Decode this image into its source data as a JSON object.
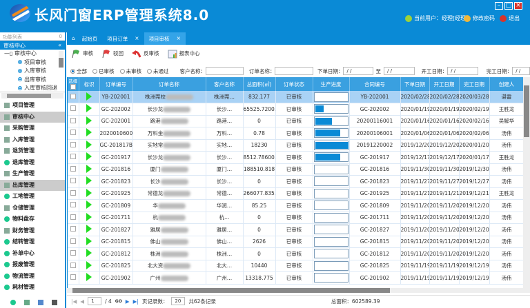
{
  "app": {
    "title": "长风门窗ERP管理系统8.0",
    "user": "当前用户：经理[经理]",
    "change_password": "修改密码",
    "logout": "退出"
  },
  "left": {
    "panel_label": "功能列表",
    "panel_pin": "0",
    "section": "审核中心",
    "tree_root": "审核中心",
    "tree": [
      "项目审核",
      "入库审核",
      "出库审核",
      "入库审核回退"
    ],
    "nav": [
      {
        "label": "项目管理",
        "icon": "clipboard-icon"
      },
      {
        "label": "审核中心",
        "icon": "document-icon",
        "selected": true
      },
      {
        "label": "采购管理",
        "icon": "cart-icon"
      },
      {
        "label": "入库管理",
        "icon": "cart-in-icon"
      },
      {
        "label": "退货管理",
        "icon": "cart-return-icon"
      },
      {
        "label": "退库管理",
        "icon": "dot-icon"
      },
      {
        "label": "生产管理",
        "icon": "production-icon"
      },
      {
        "label": "出库管理",
        "icon": "cart-out-icon",
        "selected": true
      },
      {
        "label": "工地管理",
        "icon": "dot-icon"
      },
      {
        "label": "仓储管理",
        "icon": "warehouse-icon"
      },
      {
        "label": "物料盘存",
        "icon": "dot-icon"
      },
      {
        "label": "财务管理",
        "icon": "finance-icon"
      },
      {
        "label": "结转管理",
        "icon": "dot-icon"
      },
      {
        "label": "补单中心",
        "icon": "dot-icon"
      },
      {
        "label": "报废管理",
        "icon": "dot-icon"
      },
      {
        "label": "物流管理",
        "icon": "dot-icon"
      },
      {
        "label": "耗材管理",
        "icon": "dot-icon"
      }
    ]
  },
  "tabs": [
    {
      "label": "起始页",
      "closable": false
    },
    {
      "label": "项目订单",
      "closable": true
    },
    {
      "label": "项目审核",
      "closable": true,
      "active": true
    }
  ],
  "toolbar": {
    "approve": "审核",
    "reject": "驳回",
    "unapprove": "反审核",
    "report": "报表中心"
  },
  "filter": {
    "radios": [
      "全部",
      "已审核",
      "未审核",
      "未通过"
    ],
    "selected": "全部",
    "customer_label": "客户名称：",
    "order_label": "订单名称：",
    "order_date_label": "下单日期：",
    "to_label": "至",
    "start_label": "开工日期：",
    "finish_label": "完工日期：",
    "date_placeholder": "/  /"
  },
  "table": {
    "columns": [
      "选择",
      "标识",
      "订单编号",
      "订单名称",
      "客户名称",
      "总面积(㎡)",
      "订单状态",
      "生产进度",
      "合同编号",
      "下单日期",
      "开工日期",
      "完工日期",
      "创建人"
    ],
    "rows": [
      [
        "YB-202001",
        "株洲莞校",
        "株洲莞…",
        "832.177",
        "已审核",
        0,
        "YB-202001",
        "2020/02/28",
        "2020/02/28",
        "2020/03/28",
        "谌雷"
      ],
      [
        "GC-202002",
        "长沙龙",
        "长沙…",
        "65525.7200…",
        "已审核",
        0.25,
        "GC-202002",
        "2020/01/19",
        "2020/01/19",
        "2020/02/19",
        "王胜龙"
      ],
      [
        "GC-202001",
        "路港",
        "路港…",
        "0",
        "已审核",
        0.5,
        "20200116001",
        "2020/01/16",
        "2020/01/16",
        "2020/02/16",
        "吴解华"
      ],
      [
        "20200106001",
        "万科金",
        "万科…",
        "0.78",
        "已审核",
        0.75,
        "20200106001",
        "2020/01/06",
        "2020/01/06",
        "2020/02/06",
        "汤伟"
      ],
      [
        "GC-201817B",
        "实地常",
        "实地…",
        "18230",
        "已审核",
        1,
        "20191220002",
        "2019/12/20",
        "2019/12/20",
        "2020/01/20",
        "汤伟"
      ],
      [
        "GC-201917",
        "长沙龙",
        "长沙…",
        "8512.78600…",
        "已审核",
        0.75,
        "GC-201917",
        "2019/12/17",
        "2019/12/17",
        "2020/01/17",
        "王胜龙"
      ],
      [
        "GC-201816",
        "厦门",
        "厦门…",
        "188510.818",
        "已审核",
        0,
        "GC-201816",
        "2019/11/30",
        "2019/11/30",
        "2019/12/30",
        "汤伟"
      ],
      [
        "GC-201823",
        "长沙",
        "长沙…",
        "0",
        "已审核",
        0,
        "GC-201823",
        "2019/11/27",
        "2019/11/27",
        "2019/12/27",
        "汤伟"
      ],
      [
        "GC-201925",
        "常德龙",
        "常德…",
        "266077.835…",
        "已审核",
        0,
        "GC-201925",
        "2019/11/21",
        "2019/11/21",
        "2019/12/21",
        "王胜龙"
      ],
      [
        "GC-201809",
        "华",
        "华润…",
        "85.25",
        "已审核",
        0,
        "GC-201809",
        "2019/11/20",
        "2019/11/20",
        "2019/12/20",
        "汤伟"
      ],
      [
        "GC-201711",
        "杭",
        "杭…",
        "0",
        "已审核",
        0,
        "GC-201711",
        "2019/11/20",
        "2019/11/20",
        "2019/12/20",
        "汤伟"
      ],
      [
        "GC-201827",
        "雅居",
        "雅居…",
        "0",
        "已审核",
        0,
        "GC-201827",
        "2019/11/20",
        "2019/11/20",
        "2019/12/20",
        "汤伟"
      ],
      [
        "GC-201815",
        "佛山",
        "佛山…",
        "2626",
        "已审核",
        0,
        "GC-201815",
        "2019/11/20",
        "2019/11/20",
        "2019/12/20",
        "汤伟"
      ],
      [
        "GC-201812",
        "株洲",
        "株洲…",
        "0",
        "已审核",
        0,
        "GC-201812",
        "2019/11/20",
        "2019/11/20",
        "2019/12/20",
        "汤伟"
      ],
      [
        "GC-201825",
        "北大资",
        "北大…",
        "10440",
        "已审核",
        0,
        "GC-201825",
        "2019/11/19",
        "2019/11/19",
        "2019/12/19",
        "汤伟"
      ],
      [
        "GC-201902",
        "广州",
        "广州…",
        "13318.775",
        "已审核",
        0,
        "GC-201902",
        "2019/11/19",
        "2019/11/19",
        "2019/12/19",
        "汤伟"
      ]
    ]
  },
  "pager": {
    "page": "1",
    "total_pages": "/ 4",
    "go": "GO",
    "page_size_label": "页记录数：",
    "page_size": "20",
    "total": "共62条记录",
    "total_area": "总面积：602589.39"
  },
  "colors": {
    "brand": "#0a8ad6",
    "header_row": "#3aa0e0",
    "selected_row": "#a9d2f5",
    "status_marker": "#22dd22"
  }
}
